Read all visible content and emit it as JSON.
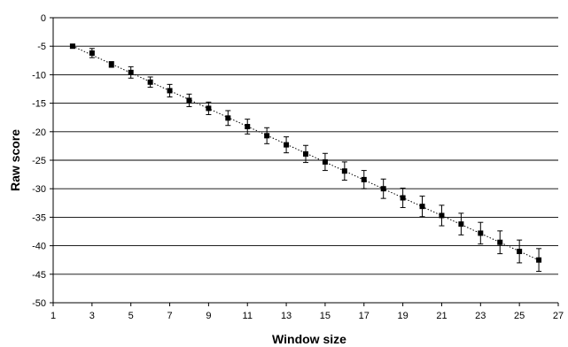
{
  "chart_data": {
    "type": "scatter",
    "title": "",
    "xlabel": "Window size",
    "ylabel": "Raw score",
    "xlim": [
      1,
      27
    ],
    "ylim": [
      -50,
      0
    ],
    "x_ticks": [
      1,
      3,
      5,
      7,
      9,
      11,
      13,
      15,
      17,
      19,
      21,
      23,
      25,
      27
    ],
    "y_ticks": [
      0,
      -5,
      -10,
      -15,
      -20,
      -25,
      -30,
      -35,
      -40,
      -45,
      -50
    ],
    "grid": "horizontal",
    "trendline": "dotted linear",
    "marker": "square",
    "colors": {
      "marker": "#000000",
      "grid": "#000000",
      "trendline": "#000000"
    },
    "series": [
      {
        "points": [
          {
            "x": 2,
            "y": -5.0,
            "err": 0.3
          },
          {
            "x": 3,
            "y": -6.2,
            "err": 0.8
          },
          {
            "x": 4,
            "y": -8.2,
            "err": 0.5
          },
          {
            "x": 5,
            "y": -9.6,
            "err": 1.0
          },
          {
            "x": 6,
            "y": -11.3,
            "err": 0.9
          },
          {
            "x": 7,
            "y": -12.8,
            "err": 1.1
          },
          {
            "x": 8,
            "y": -14.5,
            "err": 1.1
          },
          {
            "x": 9,
            "y": -15.9,
            "err": 1.1
          },
          {
            "x": 10,
            "y": -17.6,
            "err": 1.3
          },
          {
            "x": 11,
            "y": -19.1,
            "err": 1.3
          },
          {
            "x": 12,
            "y": -20.7,
            "err": 1.4
          },
          {
            "x": 13,
            "y": -22.3,
            "err": 1.4
          },
          {
            "x": 14,
            "y": -23.9,
            "err": 1.5
          },
          {
            "x": 15,
            "y": -25.3,
            "err": 1.5
          },
          {
            "x": 16,
            "y": -26.9,
            "err": 1.6
          },
          {
            "x": 17,
            "y": -28.4,
            "err": 1.6
          },
          {
            "x": 18,
            "y": -30.0,
            "err": 1.7
          },
          {
            "x": 19,
            "y": -31.6,
            "err": 1.7
          },
          {
            "x": 20,
            "y": -33.1,
            "err": 1.8
          },
          {
            "x": 21,
            "y": -34.7,
            "err": 1.8
          },
          {
            "x": 22,
            "y": -36.2,
            "err": 1.9
          },
          {
            "x": 23,
            "y": -37.8,
            "err": 1.9
          },
          {
            "x": 24,
            "y": -39.4,
            "err": 2.0
          },
          {
            "x": 25,
            "y": -41.0,
            "err": 2.0
          },
          {
            "x": 26,
            "y": -42.5,
            "err": 2.0
          }
        ]
      }
    ]
  }
}
